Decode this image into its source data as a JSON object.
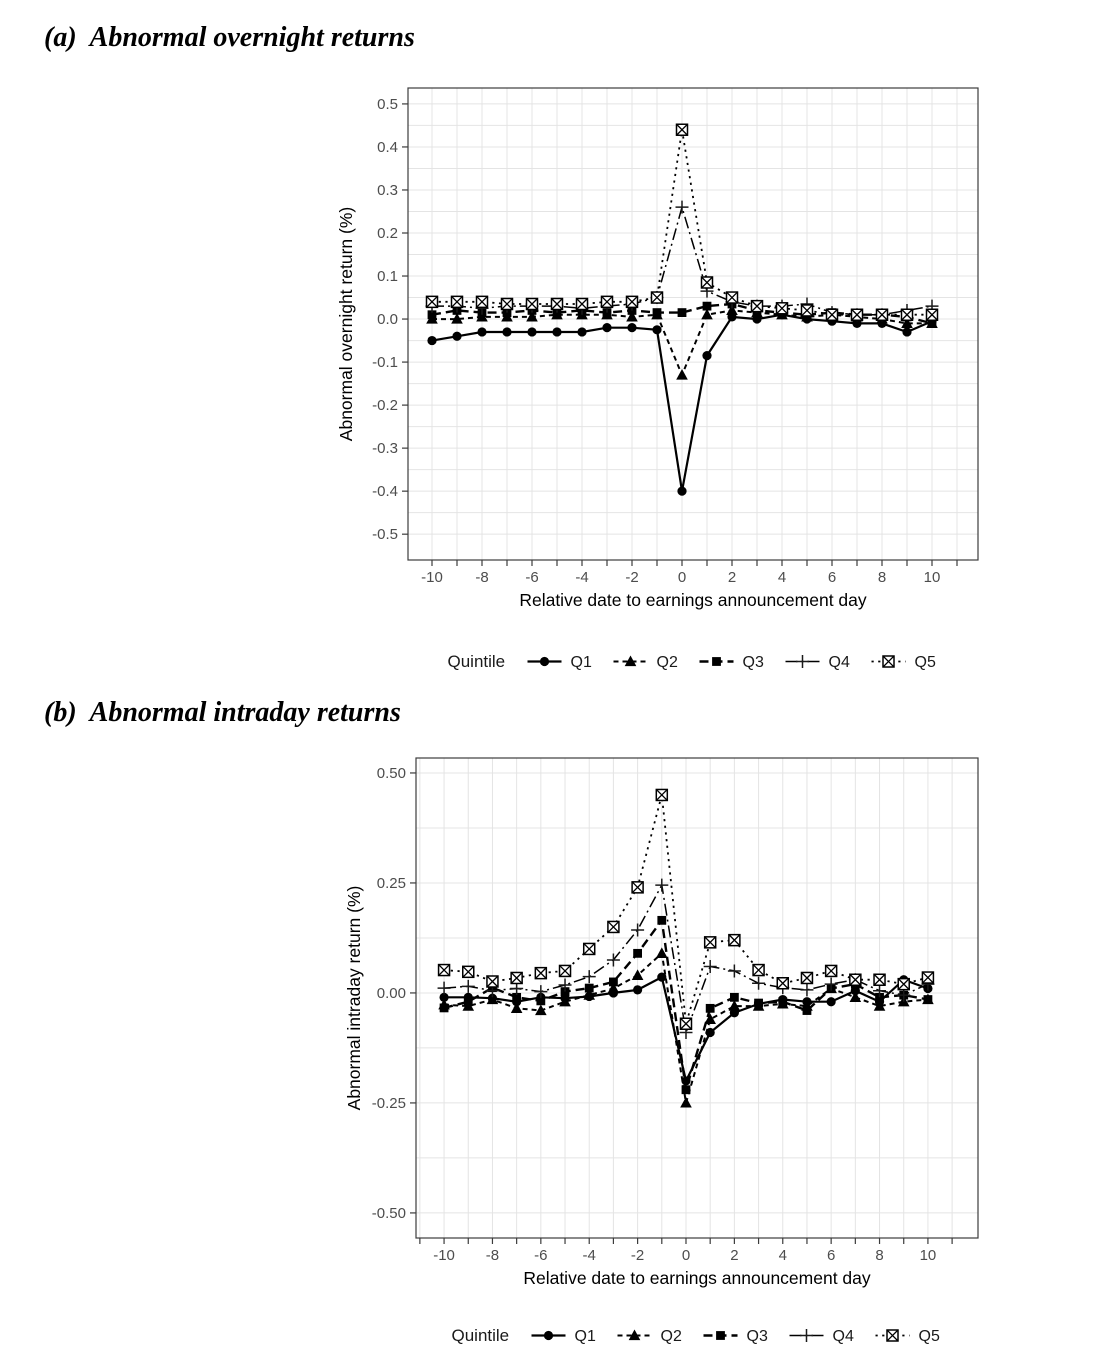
{
  "figure": {
    "background": "#ffffff",
    "series_color": "#000000",
    "axis_line_color": "#3c3c3c",
    "grid_color": "#e4e4e4",
    "tick_label_color": "#4d4d4d",
    "axis_title_color": "#000000",
    "legend_text_color": "#1a1a1a"
  },
  "chart_data": [
    {
      "panel_label": "(a)",
      "panel_title": "Abnormal overnight returns",
      "type": "line",
      "title": "",
      "xlabel": "Relative date to earnings announcement day",
      "ylabel": "Abnormal overnight return (%)",
      "x": [
        -10,
        -9,
        -8,
        -7,
        -6,
        -5,
        -4,
        -3,
        -2,
        -1,
        0,
        1,
        2,
        3,
        4,
        5,
        6,
        7,
        8,
        9,
        10
      ],
      "x_major_ticks": [
        -10,
        -8,
        -6,
        -4,
        -2,
        0,
        2,
        4,
        6,
        8,
        10
      ],
      "y_major_ticks": [
        0.5,
        0.4,
        0.3,
        0.2,
        0.1,
        0.0,
        -0.1,
        -0.2,
        -0.3,
        -0.4,
        -0.5
      ],
      "y_tick_labels": [
        "0.5",
        "0.4",
        "0.3",
        "0.2",
        "0.1",
        "0.0",
        "-0.1",
        "-0.2",
        "-0.3",
        "-0.4",
        "-0.5"
      ],
      "xlim": [
        -10.96,
        11.84
      ],
      "ylim": [
        -0.56,
        0.537
      ],
      "grid": true,
      "legend": {
        "title": "Quintile",
        "position": "bottom",
        "entries": [
          "Q1",
          "Q2",
          "Q3",
          "Q4",
          "Q5"
        ]
      },
      "series": [
        {
          "name": "Q1",
          "marker": "circle",
          "linestyle": "solid",
          "values": [
            -0.05,
            -0.04,
            -0.03,
            -0.03,
            -0.03,
            -0.03,
            -0.03,
            -0.02,
            -0.02,
            -0.025,
            -0.4,
            -0.085,
            0.005,
            0.0,
            0.01,
            0.0,
            -0.005,
            -0.01,
            -0.01,
            -0.03,
            -0.005
          ]
        },
        {
          "name": "Q2",
          "marker": "triangle",
          "linestyle": "dashed-short",
          "values": [
            0.0,
            0.0,
            0.005,
            0.005,
            0.005,
            0.01,
            0.01,
            0.01,
            0.005,
            0.01,
            -0.13,
            0.01,
            0.02,
            0.015,
            0.01,
            0.005,
            0.01,
            0.005,
            0.0,
            -0.01,
            -0.01
          ]
        },
        {
          "name": "Q3",
          "marker": "square",
          "linestyle": "dashed-long",
          "values": [
            0.01,
            0.02,
            0.015,
            0.015,
            0.02,
            0.015,
            0.02,
            0.015,
            0.02,
            0.015,
            0.015,
            0.03,
            0.035,
            0.02,
            0.015,
            0.01,
            0.015,
            0.01,
            0.01,
            0.005,
            -0.01
          ]
        },
        {
          "name": "Q4",
          "marker": "plus",
          "linestyle": "dash-dot",
          "values": [
            0.03,
            0.03,
            0.025,
            0.03,
            0.03,
            0.03,
            0.025,
            0.03,
            0.035,
            0.05,
            0.26,
            0.065,
            0.04,
            0.03,
            0.03,
            0.035,
            0.015,
            0.01,
            0.01,
            0.02,
            0.03
          ]
        },
        {
          "name": "Q5",
          "marker": "square-cross",
          "linestyle": "dotted",
          "values": [
            0.04,
            0.04,
            0.04,
            0.035,
            0.035,
            0.035,
            0.035,
            0.04,
            0.04,
            0.05,
            0.44,
            0.085,
            0.05,
            0.03,
            0.025,
            0.02,
            0.01,
            0.01,
            0.01,
            0.01,
            0.01
          ]
        }
      ]
    },
    {
      "panel_label": "(b)",
      "panel_title": "Abnormal intraday returns",
      "type": "line",
      "title": "",
      "xlabel": "Relative date to earnings announcement day",
      "ylabel": "Abnormal intraday return (%)",
      "x": [
        -10,
        -9,
        -8,
        -7,
        -6,
        -5,
        -4,
        -3,
        -2,
        -1,
        0,
        1,
        2,
        3,
        4,
        5,
        6,
        7,
        8,
        9,
        10
      ],
      "x_major_ticks": [
        -10,
        -8,
        -6,
        -4,
        -2,
        0,
        2,
        4,
        6,
        8,
        10
      ],
      "y_major_ticks": [
        0.5,
        0.25,
        0.0,
        -0.25,
        -0.5
      ],
      "y_tick_labels": [
        "0.50",
        "0.25",
        "0.00",
        "-0.25",
        "-0.50"
      ],
      "xlim": [
        -11.16,
        12.07
      ],
      "ylim": [
        -0.557,
        0.534
      ],
      "grid": true,
      "legend": {
        "title": "Quintile",
        "position": "bottom",
        "entries": [
          "Q1",
          "Q2",
          "Q3",
          "Q4",
          "Q5"
        ]
      },
      "series": [
        {
          "name": "Q1",
          "marker": "circle",
          "linestyle": "solid",
          "values": [
            -0.01,
            -0.01,
            -0.012,
            -0.02,
            -0.01,
            -0.012,
            -0.008,
            0.0,
            0.007,
            0.036,
            -0.2,
            -0.09,
            -0.045,
            -0.025,
            -0.015,
            -0.02,
            -0.02,
            0.005,
            -0.02,
            0.03,
            0.01
          ]
        },
        {
          "name": "Q2",
          "marker": "triangle",
          "linestyle": "dashed-short",
          "values": [
            -0.027,
            -0.03,
            -0.015,
            -0.035,
            -0.04,
            -0.02,
            -0.005,
            0.01,
            0.04,
            0.09,
            -0.25,
            -0.06,
            -0.03,
            -0.03,
            -0.025,
            -0.03,
            0.01,
            -0.01,
            -0.03,
            -0.02,
            -0.015
          ]
        },
        {
          "name": "Q3",
          "marker": "square",
          "linestyle": "dashed-long",
          "values": [
            -0.034,
            -0.02,
            0.012,
            -0.01,
            -0.018,
            0.003,
            0.011,
            0.025,
            0.09,
            0.165,
            -0.22,
            -0.035,
            -0.01,
            -0.023,
            -0.02,
            -0.04,
            0.01,
            0.02,
            -0.01,
            -0.005,
            -0.015
          ]
        },
        {
          "name": "Q4",
          "marker": "plus",
          "linestyle": "dash-dot",
          "values": [
            0.011,
            0.015,
            0.005,
            0.01,
            0.003,
            0.018,
            0.037,
            0.075,
            0.143,
            0.245,
            -0.09,
            0.06,
            0.05,
            0.022,
            0.012,
            0.007,
            0.02,
            0.03,
            0.005,
            -0.005,
            0.02
          ]
        },
        {
          "name": "Q5",
          "marker": "square-cross",
          "linestyle": "dotted",
          "values": [
            0.052,
            0.048,
            0.026,
            0.034,
            0.045,
            0.05,
            0.1,
            0.15,
            0.24,
            0.45,
            -0.07,
            0.115,
            0.12,
            0.052,
            0.022,
            0.034,
            0.05,
            0.03,
            0.03,
            0.02,
            0.035
          ]
        }
      ]
    }
  ]
}
